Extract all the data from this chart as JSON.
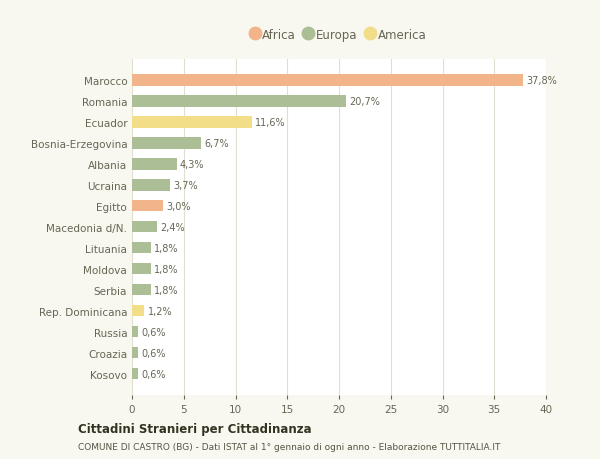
{
  "categories": [
    "Marocco",
    "Romania",
    "Ecuador",
    "Bosnia-Erzegovina",
    "Albania",
    "Ucraina",
    "Egitto",
    "Macedonia d/N.",
    "Lituania",
    "Moldova",
    "Serbia",
    "Rep. Dominicana",
    "Russia",
    "Croazia",
    "Kosovo"
  ],
  "values": [
    37.8,
    20.7,
    11.6,
    6.7,
    4.3,
    3.7,
    3.0,
    2.4,
    1.8,
    1.8,
    1.8,
    1.2,
    0.6,
    0.6,
    0.6
  ],
  "labels": [
    "37,8%",
    "20,7%",
    "11,6%",
    "6,7%",
    "4,3%",
    "3,7%",
    "3,0%",
    "2,4%",
    "1,8%",
    "1,8%",
    "1,8%",
    "1,2%",
    "0,6%",
    "0,6%",
    "0,6%"
  ],
  "continents": [
    "Africa",
    "Europa",
    "America",
    "Europa",
    "Europa",
    "Europa",
    "Africa",
    "Europa",
    "Europa",
    "Europa",
    "Europa",
    "America",
    "Europa",
    "Europa",
    "Europa"
  ],
  "colors": {
    "Africa": "#F2B48A",
    "Europa": "#ABBE95",
    "America": "#F2DD88"
  },
  "xlim": [
    0,
    40
  ],
  "xticks": [
    0,
    5,
    10,
    15,
    20,
    25,
    30,
    35,
    40
  ],
  "title": "Cittadini Stranieri per Cittadinanza",
  "subtitle": "COMUNE DI CASTRO (BG) - Dati ISTAT al 1° gennaio di ogni anno - Elaborazione TUTTITALIA.IT",
  "background_color": "#f8f8f0",
  "plot_bg_color": "#ffffff",
  "grid_color": "#e0e0d0",
  "text_color": "#666655",
  "label_color": "#666655"
}
